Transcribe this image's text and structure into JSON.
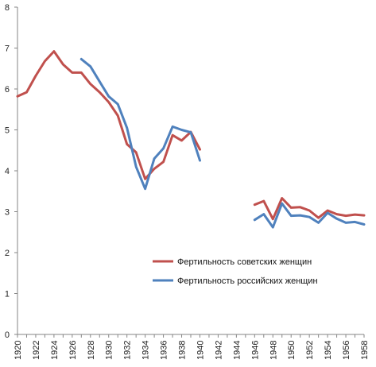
{
  "chart_data": {
    "type": "line",
    "title": "",
    "xlabel": "",
    "ylabel": "",
    "ylim": [
      0,
      8
    ],
    "xlim": [
      1920,
      1958
    ],
    "y_ticks": [
      0,
      1,
      2,
      3,
      4,
      5,
      6,
      7,
      8
    ],
    "x_ticks": [
      1920,
      1922,
      1924,
      1926,
      1928,
      1930,
      1932,
      1934,
      1936,
      1938,
      1940,
      1942,
      1944,
      1946,
      1948,
      1950,
      1952,
      1954,
      1956,
      1958
    ],
    "grid": false,
    "legend_position": "bottom-center",
    "series": [
      {
        "name": "Фертильность  советских женщин",
        "color": "#c0504d",
        "points": [
          [
            1920,
            5.82
          ],
          [
            1921,
            5.92
          ],
          [
            1922,
            6.32
          ],
          [
            1923,
            6.68
          ],
          [
            1924,
            6.92
          ],
          [
            1925,
            6.6
          ],
          [
            1926,
            6.4
          ],
          [
            1927,
            6.4
          ],
          [
            1928,
            6.12
          ],
          [
            1929,
            5.92
          ],
          [
            1930,
            5.68
          ],
          [
            1931,
            5.35
          ],
          [
            1932,
            4.65
          ],
          [
            1933,
            4.45
          ],
          [
            1934,
            3.8
          ],
          [
            1935,
            4.05
          ],
          [
            1936,
            4.22
          ],
          [
            1937,
            4.87
          ],
          [
            1938,
            4.74
          ],
          [
            1939,
            4.95
          ],
          [
            1940,
            4.52
          ],
          [
            1946,
            3.17
          ],
          [
            1947,
            3.26
          ],
          [
            1948,
            2.82
          ],
          [
            1949,
            3.33
          ],
          [
            1950,
            3.1
          ],
          [
            1951,
            3.11
          ],
          [
            1952,
            3.03
          ],
          [
            1953,
            2.85
          ],
          [
            1954,
            3.03
          ],
          [
            1955,
            2.94
          ],
          [
            1956,
            2.9
          ],
          [
            1957,
            2.93
          ],
          [
            1958,
            2.91
          ]
        ]
      },
      {
        "name": "Фертильность  российских женщин",
        "color": "#4f81bd",
        "points": [
          [
            1927,
            6.73
          ],
          [
            1928,
            6.55
          ],
          [
            1929,
            6.18
          ],
          [
            1930,
            5.82
          ],
          [
            1931,
            5.63
          ],
          [
            1932,
            5.05
          ],
          [
            1933,
            4.1
          ],
          [
            1934,
            3.56
          ],
          [
            1935,
            4.3
          ],
          [
            1936,
            4.55
          ],
          [
            1937,
            5.08
          ],
          [
            1938,
            5.0
          ],
          [
            1939,
            4.94
          ],
          [
            1940,
            4.25
          ],
          [
            1946,
            2.8
          ],
          [
            1947,
            2.94
          ],
          [
            1948,
            2.62
          ],
          [
            1949,
            3.2
          ],
          [
            1950,
            2.9
          ],
          [
            1951,
            2.91
          ],
          [
            1952,
            2.87
          ],
          [
            1953,
            2.73
          ],
          [
            1954,
            2.97
          ],
          [
            1955,
            2.83
          ],
          [
            1956,
            2.73
          ],
          [
            1957,
            2.75
          ],
          [
            1958,
            2.69
          ]
        ]
      }
    ]
  }
}
